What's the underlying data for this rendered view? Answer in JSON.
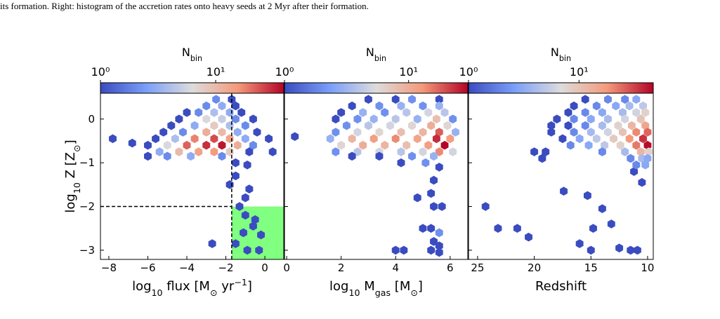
{
  "caption": "its formation. Right: histogram of the accretion rates onto heavy seeds at 2 Myr after their formation.",
  "ylabel": [
    "log",
    "10",
    " Z [Z",
    "⊙",
    "]"
  ],
  "ylabel_styles": [
    "normal",
    "sub",
    "normal",
    "sub",
    "normal"
  ],
  "chart_data": [
    {
      "type": "hexbin",
      "xlabel": [
        "log",
        "10",
        " flux [M",
        "⊙",
        " yr",
        "−1",
        "]"
      ],
      "xlabel_styles": [
        "normal",
        "sub",
        "normal",
        "sub",
        "normal",
        "sup",
        "normal"
      ],
      "colorbar_label": [
        "N",
        "bin"
      ],
      "colorbar_label_styles": [
        "normal",
        "sub"
      ],
      "colormap": [
        "#3b4cc0",
        "#7b9ff9",
        "#dddcdc",
        "#f49a7b",
        "#b40426"
      ],
      "log_color": true,
      "clim": [
        1,
        39
      ],
      "colorbar_ticks": [
        {
          "value": 1,
          "label": "10⁰"
        },
        {
          "value": 10,
          "label": "10¹"
        }
      ],
      "xlim": [
        -8.43,
        0.97
      ],
      "ylim": [
        -3.21,
        0.59
      ],
      "xticks": [
        {
          "value": -8,
          "label": "−8"
        },
        {
          "value": -6,
          "label": "−6"
        },
        {
          "value": -4,
          "label": "−4"
        },
        {
          "value": -2,
          "label": "−2"
        },
        0
      ],
      "yticks": [
        {
          "value": 0,
          "label": "0"
        },
        {
          "value": -1,
          "label": "−1"
        },
        {
          "value": -2,
          "label": "−2"
        },
        {
          "value": -3,
          "label": "−3"
        }
      ],
      "vline": -1.7,
      "hline": -2,
      "shade_color": "#80ff80",
      "x": [
        -7.8,
        -6.8,
        -1.5,
        -1.5,
        -0.9,
        -1.8,
        -0.8,
        -1.0,
        -1.3,
        -1.0,
        -0.5,
        -0.6,
        -1.1,
        -0.2,
        -2.7,
        -1.5,
        -0.3,
        -0.9,
        -2.5,
        -1.7,
        -3.0,
        -2.2,
        -1.5,
        -4.0,
        -3.4,
        -2.6,
        -1.8,
        -1.2,
        -4.4,
        -3.0,
        -2.2,
        -1.5,
        -0.6,
        -4.8,
        -3.6,
        -2.6,
        -1.8,
        -1.0,
        -5.2,
        -4.2,
        -3.0,
        -2.2,
        -1.4,
        -0.4,
        -5.6,
        -4.6,
        -3.6,
        -2.6,
        -1.8,
        -1.0,
        0.2,
        -6.0,
        -5.0,
        -4.0,
        -3.0,
        -2.2,
        -1.4,
        -0.6,
        -5.4,
        -4.4,
        -3.4,
        -2.6,
        -1.8,
        -0.8,
        0.4,
        -6.0,
        -5.0,
        -3.8,
        -2.2
      ],
      "y": [
        -0.45,
        -0.55,
        -1.0,
        -1.3,
        -1.05,
        -1.5,
        -1.6,
        -1.8,
        -2.0,
        -2.2,
        -2.3,
        -2.45,
        -2.6,
        -2.65,
        -2.85,
        -2.85,
        -3.0,
        -3.0,
        0.45,
        0.45,
        0.3,
        0.3,
        0.3,
        0.15,
        0.15,
        0.15,
        0.15,
        0.15,
        0,
        0,
        0,
        0,
        0,
        -0.15,
        -0.15,
        -0.15,
        -0.15,
        -0.15,
        -0.3,
        -0.3,
        -0.3,
        -0.3,
        -0.3,
        -0.3,
        -0.45,
        -0.45,
        -0.45,
        -0.45,
        -0.45,
        -0.45,
        -0.45,
        -0.6,
        -0.6,
        -0.6,
        -0.6,
        -0.6,
        -0.6,
        -0.6,
        -0.75,
        -0.75,
        -0.75,
        -0.75,
        -0.75,
        -0.75,
        -0.75,
        -0.85,
        -0.85,
        -0.85,
        -0.85
      ],
      "counts": [
        1,
        1,
        1,
        1,
        1,
        1,
        1,
        1,
        1,
        1,
        1,
        1,
        1,
        1,
        1,
        1,
        1,
        1,
        2,
        1,
        2,
        3,
        1,
        1,
        2,
        4,
        3,
        1,
        1,
        6,
        5,
        2,
        1,
        1,
        3,
        8,
        4,
        2,
        1,
        2,
        12,
        10,
        3,
        1,
        1,
        4,
        18,
        25,
        14,
        3,
        1,
        1,
        6,
        22,
        30,
        35,
        12,
        2,
        3,
        10,
        14,
        15,
        8,
        1,
        1,
        1,
        2,
        3,
        2
      ]
    },
    {
      "type": "hexbin",
      "xlabel": [
        "log",
        "10",
        " M",
        "gas",
        " [M",
        "⊙",
        "]"
      ],
      "xlabel_styles": [
        "normal",
        "sub",
        "normal",
        "sub",
        "normal",
        "sub",
        "normal"
      ],
      "colorbar_label": [
        "N",
        "bin"
      ],
      "colorbar_label_styles": [
        "normal",
        "sub"
      ],
      "colormap": [
        "#3b4cc0",
        "#7b9ff9",
        "#dddcdc",
        "#f49a7b",
        "#b40426"
      ],
      "log_color": true,
      "clim": [
        1,
        30
      ],
      "colorbar_ticks": [
        {
          "value": 1,
          "label": "10⁰"
        },
        {
          "value": 10,
          "label": "10¹"
        }
      ],
      "xlim": [
        -0.08,
        6.65
      ],
      "ylim": [
        -3.21,
        0.59
      ],
      "xticks": [
        0,
        2,
        4,
        6
      ],
      "x": [
        0.3,
        4.2,
        5.1,
        5.6,
        5.4,
        5.3,
        4.8,
        5.4,
        5.7,
        5.0,
        5.3,
        5.6,
        5.4,
        5.6,
        4.0,
        4.3,
        5.3,
        5.6,
        3.0,
        4.0,
        4.6,
        5.6,
        2.4,
        3.4,
        4.2,
        5.0,
        5.6,
        2.0,
        2.8,
        3.6,
        4.4,
        5.2,
        5.8,
        1.8,
        2.6,
        3.2,
        4.0,
        4.8,
        5.5,
        6.1,
        2.2,
        3.0,
        3.8,
        4.6,
        5.3,
        5.9,
        1.8,
        2.6,
        3.4,
        4.2,
        5.0,
        5.6,
        6.2,
        1.6,
        2.4,
        3.2,
        4.0,
        4.8,
        5.5,
        6.0,
        2.0,
        2.8,
        3.6,
        4.4,
        5.2,
        5.8,
        1.8,
        2.6,
        3.4,
        4.2,
        5.0,
        5.6,
        6.1,
        2.4,
        3.4,
        4.6,
        5.4
      ],
      "y": [
        -0.4,
        -1.0,
        -1.0,
        -1.1,
        -1.4,
        -1.7,
        -1.8,
        -2.0,
        -2.0,
        -2.5,
        -2.5,
        -2.6,
        -2.8,
        -2.9,
        -3.0,
        -3.0,
        -3.0,
        -3.05,
        0.45,
        0.45,
        0.45,
        0.45,
        0.3,
        0.3,
        0.3,
        0.3,
        0.3,
        0.15,
        0.15,
        0.15,
        0.15,
        0.15,
        0.15,
        0,
        0,
        0,
        0,
        0,
        0,
        0,
        -0.15,
        -0.15,
        -0.15,
        -0.15,
        -0.15,
        -0.15,
        -0.3,
        -0.3,
        -0.3,
        -0.3,
        -0.3,
        -0.3,
        -0.3,
        -0.45,
        -0.45,
        -0.45,
        -0.45,
        -0.45,
        -0.45,
        -0.45,
        -0.6,
        -0.6,
        -0.6,
        -0.6,
        -0.6,
        -0.6,
        -0.75,
        -0.75,
        -0.75,
        -0.75,
        -0.75,
        -0.75,
        -0.75,
        -0.85,
        -0.85,
        -0.85,
        -0.85
      ],
      "counts": [
        1,
        1,
        2,
        1,
        1,
        1,
        1,
        1,
        1,
        1,
        1,
        2,
        1,
        1,
        1,
        1,
        1,
        1,
        1,
        1,
        2,
        1,
        1,
        2,
        3,
        2,
        3,
        1,
        3,
        2,
        4,
        5,
        4,
        1,
        2,
        3,
        4,
        3,
        8,
        2,
        2,
        4,
        5,
        6,
        10,
        6,
        2,
        5,
        6,
        8,
        9,
        18,
        3,
        3,
        9,
        12,
        14,
        11,
        24,
        12,
        6,
        10,
        9,
        8,
        12,
        30,
        2,
        4,
        5,
        4,
        5,
        14,
        5,
        1,
        1,
        2,
        3
      ]
    },
    {
      "type": "hexbin",
      "xlabel": [
        "Redshift"
      ],
      "xlabel_styles": [
        "normal"
      ],
      "colorbar_label": [
        "N",
        "bin"
      ],
      "colorbar_label_styles": [
        "normal",
        "sub"
      ],
      "colormap": [
        "#3b4cc0",
        "#7b9ff9",
        "#dddcdc",
        "#f49a7b",
        "#b40426"
      ],
      "log_color": true,
      "clim": [
        1,
        47
      ],
      "colorbar_ticks": [
        {
          "value": 1,
          "label": "10⁰"
        },
        {
          "value": 10,
          "label": "10¹"
        }
      ],
      "xlim": [
        25.8,
        9.5
      ],
      "ylim": [
        -3.21,
        0.59
      ],
      "xticks": [
        25,
        20,
        15,
        10
      ],
      "x": [
        24.3,
        23.2,
        21.5,
        20.5,
        20.0,
        19.3,
        18.5,
        17.4,
        15.3,
        14.0,
        14.8,
        16.0,
        13.2,
        15.0,
        12.5,
        11.5,
        10.9,
        10.5,
        11.2,
        15.5,
        13.5,
        12.0,
        11.0,
        16.5,
        14.5,
        12.8,
        11.6,
        10.4,
        17.0,
        15.5,
        14.0,
        12.2,
        11.0,
        10.2,
        18.0,
        16.5,
        15.0,
        13.5,
        12.0,
        10.6,
        18.5,
        17.0,
        15.5,
        14.0,
        12.6,
        11.4,
        10.2,
        16.5,
        15.0,
        13.5,
        12.2,
        11.0,
        10.0,
        17.5,
        16.0,
        14.5,
        13.0,
        11.6,
        10.4,
        16.8,
        15.2,
        13.8,
        12.4,
        11.0,
        10.0,
        19.0,
        14.0,
        12.0,
        10.6,
        9.9,
        11.5,
        10.5,
        10.0,
        11.0,
        10.2
      ],
      "y": [
        -2.0,
        -2.5,
        -2.5,
        -2.7,
        -0.75,
        -0.9,
        -0.3,
        -1.65,
        -1.75,
        -2.05,
        -2.5,
        -2.85,
        -2.4,
        -3.0,
        -2.95,
        -3.0,
        -3.0,
        -1.45,
        -1.2,
        0.45,
        0.45,
        0.45,
        0.45,
        0.3,
        0.3,
        0.3,
        0.3,
        0.3,
        0.15,
        0.15,
        0.15,
        0.15,
        0.15,
        0.15,
        0,
        0,
        0,
        0,
        0,
        0,
        -0.15,
        -0.15,
        -0.15,
        -0.15,
        -0.15,
        -0.15,
        -0.15,
        -0.3,
        -0.3,
        -0.3,
        -0.3,
        -0.3,
        -0.3,
        -0.45,
        -0.45,
        -0.45,
        -0.45,
        -0.45,
        -0.45,
        -0.6,
        -0.6,
        -0.6,
        -0.6,
        -0.6,
        -0.6,
        -0.75,
        -0.75,
        -0.75,
        -0.75,
        -0.75,
        -0.9,
        -0.9,
        -0.9,
        -1.05,
        -1.05
      ],
      "counts": [
        1,
        1,
        1,
        1,
        1,
        1,
        1,
        1,
        1,
        1,
        1,
        1,
        1,
        1,
        1,
        1,
        1,
        1,
        1,
        1,
        2,
        2,
        3,
        1,
        2,
        3,
        4,
        5,
        1,
        2,
        3,
        4,
        6,
        8,
        1,
        2,
        3,
        4,
        6,
        10,
        1,
        1,
        2,
        4,
        8,
        12,
        15,
        2,
        4,
        6,
        10,
        20,
        25,
        1,
        3,
        5,
        9,
        18,
        35,
        2,
        3,
        5,
        8,
        22,
        45,
        1,
        2,
        4,
        12,
        8,
        2,
        4,
        3,
        2,
        3
      ]
    }
  ]
}
